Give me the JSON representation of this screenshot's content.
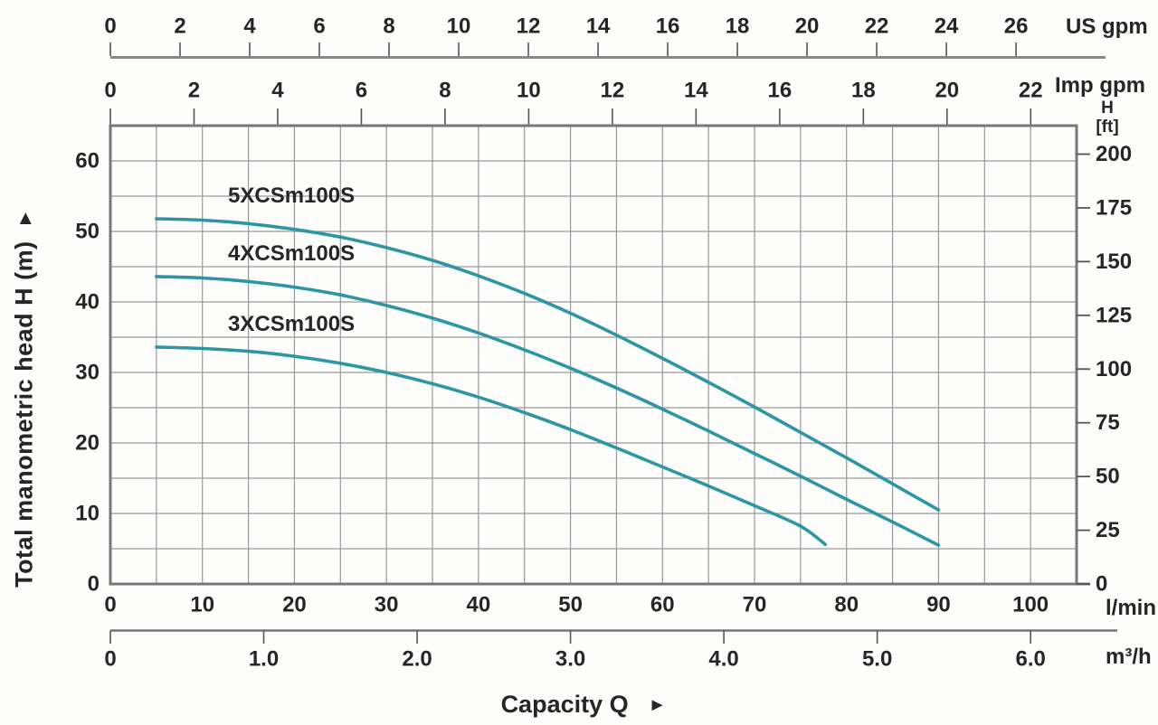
{
  "labels": {
    "y_axis_title": "Total manometric head H (m)",
    "y_axis_arrow": "▲",
    "x_axis_title": "Capacity Q",
    "x_axis_arrow": "►",
    "unit_us_gpm": "US gpm",
    "unit_imp_gpm": "Imp gpm",
    "unit_h": "H",
    "unit_ft": "[ft]",
    "unit_lmin": "l/min",
    "unit_m3h": "m³/h"
  },
  "colors": {
    "curve": "#2d96a4",
    "grid": "#999999",
    "border": "#777777",
    "axis_line": "#888888",
    "tick": "#555555",
    "text": "#262626"
  },
  "chart_data": {
    "type": "line",
    "title": "",
    "xlabel": "Capacity Q",
    "ylabel": "Total manometric head H (m)",
    "grid": true,
    "x_unit_axes": [
      {
        "id": "us_gpm",
        "label": "US gpm",
        "lmin_per_unit": 3.7854,
        "ticks": [
          0,
          2,
          4,
          6,
          8,
          10,
          12,
          14,
          16,
          18,
          20,
          22,
          24,
          26
        ],
        "tick_labels": [
          "0",
          "2",
          "4",
          "6",
          "8",
          "10",
          "12",
          "14",
          "16",
          "18",
          "20",
          "22",
          "24",
          "26"
        ]
      },
      {
        "id": "imp_gpm",
        "label": "Imp gpm",
        "lmin_per_unit": 4.5461,
        "ticks": [
          0,
          2,
          4,
          6,
          8,
          10,
          12,
          14,
          16,
          18,
          20,
          22
        ],
        "tick_labels": [
          "0",
          "2",
          "4",
          "6",
          "8",
          "10",
          "12",
          "14",
          "16",
          "18",
          "20",
          "22"
        ]
      },
      {
        "id": "lmin",
        "label": "l/min",
        "lmin_per_unit": 1,
        "ticks": [
          0,
          10,
          20,
          30,
          40,
          50,
          60,
          70,
          80,
          90,
          100
        ],
        "tick_labels": [
          "0",
          "10",
          "20",
          "30",
          "40",
          "50",
          "60",
          "70",
          "80",
          "90",
          "100"
        ]
      },
      {
        "id": "m3h",
        "label": "m³/h",
        "lmin_per_unit": 16.667,
        "ticks": [
          0,
          1,
          2,
          3,
          4,
          5,
          6
        ],
        "tick_labels": [
          "0",
          "1.0",
          "2.0",
          "3.0",
          "4.0",
          "5.0",
          "6.0"
        ]
      }
    ],
    "y_unit_axes": [
      {
        "id": "m",
        "label": "H (m)",
        "m_per_unit": 1,
        "ticks": [
          0,
          10,
          20,
          30,
          40,
          50,
          60
        ],
        "tick_labels": [
          "0",
          "10",
          "20",
          "30",
          "40",
          "50",
          "60"
        ]
      },
      {
        "id": "ft",
        "label": "H [ft]",
        "m_per_unit": 0.3048,
        "ticks": [
          0,
          25,
          50,
          75,
          100,
          125,
          150,
          175,
          200
        ],
        "tick_labels": [
          "0",
          "25",
          "50",
          "75",
          "100",
          "125",
          "150",
          "175",
          "200"
        ]
      }
    ],
    "xlim_lmin": [
      0,
      105
    ],
    "ylim_m": [
      0,
      65
    ],
    "grid_step_lmin": 5,
    "grid_step_m": 5,
    "series": [
      {
        "name": "5XCSm100S",
        "points": [
          [
            5,
            51.8
          ],
          [
            10,
            51.6
          ],
          [
            15,
            51.1
          ],
          [
            20,
            50.3
          ],
          [
            25,
            49.2
          ],
          [
            30,
            47.7
          ],
          [
            35,
            45.9
          ],
          [
            40,
            43.7
          ],
          [
            45,
            41.2
          ],
          [
            50,
            38.4
          ],
          [
            55,
            35.3
          ],
          [
            60,
            32.0
          ],
          [
            65,
            28.6
          ],
          [
            70,
            25.1
          ],
          [
            75,
            21.5
          ],
          [
            80,
            17.9
          ],
          [
            85,
            14.2
          ],
          [
            90,
            10.5
          ]
        ]
      },
      {
        "name": "4XCSm100S",
        "points": [
          [
            5,
            43.6
          ],
          [
            10,
            43.4
          ],
          [
            15,
            42.9
          ],
          [
            20,
            42.1
          ],
          [
            25,
            41.0
          ],
          [
            30,
            39.5
          ],
          [
            35,
            37.7
          ],
          [
            40,
            35.6
          ],
          [
            45,
            33.2
          ],
          [
            50,
            30.6
          ],
          [
            55,
            27.8
          ],
          [
            60,
            24.8
          ],
          [
            65,
            21.7
          ],
          [
            70,
            18.5
          ],
          [
            75,
            15.3
          ],
          [
            80,
            12.0
          ],
          [
            85,
            8.8
          ],
          [
            90,
            5.5
          ]
        ]
      },
      {
        "name": "3XCSm100S",
        "points": [
          [
            5,
            33.6
          ],
          [
            10,
            33.4
          ],
          [
            15,
            33.0
          ],
          [
            20,
            32.3
          ],
          [
            25,
            31.3
          ],
          [
            30,
            30.0
          ],
          [
            35,
            28.4
          ],
          [
            40,
            26.5
          ],
          [
            45,
            24.3
          ],
          [
            50,
            21.9
          ],
          [
            55,
            19.3
          ],
          [
            60,
            16.6
          ],
          [
            65,
            13.9
          ],
          [
            70,
            11.1
          ],
          [
            75,
            8.2
          ],
          [
            77.7,
            5.6
          ]
        ]
      }
    ]
  }
}
